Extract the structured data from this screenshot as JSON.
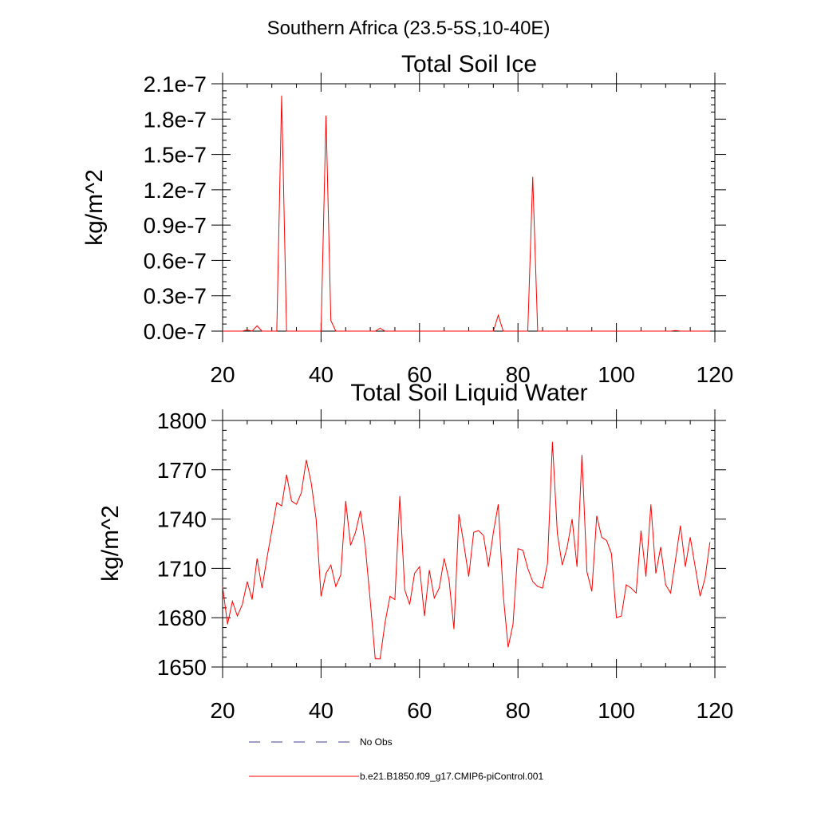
{
  "title": "Southern Africa (23.5-5S,10-40E)",
  "colors": {
    "model_line": "#ff0000",
    "obs_line": "#3c3c8c",
    "axis": "#000000"
  },
  "legend": {
    "placement": "bottom-left",
    "entries": [
      {
        "label": "No Obs",
        "style": "dashed",
        "color": "#3c3c8c"
      },
      {
        "label": "b.e21.B1850.f09_g17.CMIP6-piControl.001",
        "style": "solid",
        "color": "#ff0000"
      }
    ]
  },
  "chart_data": [
    {
      "type": "line",
      "title": "Total Soil Ice",
      "xlabel": "",
      "ylabel": "kg/m^2",
      "xlim": [
        20,
        120
      ],
      "ylim": [
        0,
        2.1e-07
      ],
      "xticks": [
        20,
        40,
        60,
        80,
        100,
        120
      ],
      "xtick_labels": [
        "20",
        "40",
        "60",
        "80",
        "100",
        "120"
      ],
      "yticks": [
        0,
        3e-08,
        6e-08,
        9e-08,
        1.2e-07,
        1.5e-07,
        1.8e-07,
        2.1e-07
      ],
      "ytick_labels": [
        "0.0e-7",
        "0.3e-7",
        "0.6e-7",
        "0.9e-7",
        "1.2e-7",
        "1.5e-7",
        "1.8e-7",
        "2.1e-7"
      ],
      "grid": false,
      "series": [
        {
          "name": "b.e21.B1850.f09_g17.CMIP6-piControl.001",
          "x": [
            20,
            21,
            22,
            23,
            24,
            25,
            26,
            27,
            28,
            29,
            30,
            31,
            32,
            33,
            34,
            35,
            36,
            37,
            38,
            39,
            40,
            41,
            42,
            43,
            44,
            45,
            46,
            47,
            48,
            49,
            50,
            51,
            52,
            53,
            54,
            55,
            56,
            57,
            58,
            59,
            60,
            61,
            62,
            63,
            64,
            65,
            66,
            67,
            68,
            69,
            70,
            71,
            72,
            73,
            74,
            75,
            76,
            77,
            78,
            79,
            80,
            81,
            82,
            83,
            84,
            85,
            86,
            87,
            88,
            89,
            90,
            91,
            92,
            93,
            94,
            95,
            96,
            97,
            98,
            99,
            100,
            101,
            102,
            103,
            104,
            105,
            106,
            107,
            108,
            109,
            110,
            111,
            112,
            113,
            114,
            115,
            116,
            117,
            118,
            119
          ],
          "y": [
            0,
            0,
            0,
            0,
            0,
            1e-09,
            0,
            4.5e-09,
            0,
            0,
            0,
            0,
            2e-07,
            0,
            0,
            0,
            0,
            0,
            0,
            0,
            0,
            1.83e-07,
            9e-09,
            0,
            0,
            0,
            0,
            0,
            0,
            0,
            0,
            0,
            2.5e-09,
            0,
            0,
            0,
            0,
            0,
            0,
            0,
            0,
            0,
            0,
            0,
            0,
            0,
            0,
            0,
            0,
            0,
            0,
            0,
            0,
            0,
            0,
            0,
            1.35e-08,
            0,
            0,
            0,
            0,
            0,
            0,
            1.31e-07,
            0,
            0,
            0,
            0,
            0,
            0,
            0,
            0,
            0,
            0,
            0,
            0,
            0,
            0,
            0,
            0,
            0,
            0,
            0,
            0,
            0,
            0,
            0,
            0,
            0,
            0,
            0,
            0,
            5e-10,
            0,
            0,
            0,
            0,
            0,
            0,
            0
          ]
        }
      ]
    },
    {
      "type": "line",
      "title": "Total Soil Liquid Water",
      "xlabel": "",
      "ylabel": "kg/m^2",
      "xlim": [
        20,
        120
      ],
      "ylim": [
        1650,
        1800
      ],
      "xticks": [
        20,
        40,
        60,
        80,
        100,
        120
      ],
      "xtick_labels": [
        "20",
        "40",
        "60",
        "80",
        "100",
        "120"
      ],
      "yticks": [
        1650,
        1680,
        1710,
        1740,
        1770,
        1800
      ],
      "ytick_labels": [
        "1650",
        "1680",
        "1710",
        "1740",
        "1770",
        "1800"
      ],
      "grid": false,
      "series": [
        {
          "name": "b.e21.B1850.f09_g17.CMIP6-piControl.001",
          "x": [
            20,
            21,
            22,
            23,
            24,
            25,
            26,
            27,
            28,
            29,
            30,
            31,
            32,
            33,
            34,
            35,
            36,
            37,
            38,
            39,
            40,
            41,
            42,
            43,
            44,
            45,
            46,
            47,
            48,
            49,
            50,
            51,
            52,
            53,
            54,
            55,
            56,
            57,
            58,
            59,
            60,
            61,
            62,
            63,
            64,
            65,
            66,
            67,
            68,
            69,
            70,
            71,
            72,
            73,
            74,
            75,
            76,
            77,
            78,
            79,
            80,
            81,
            82,
            83,
            84,
            85,
            86,
            87,
            88,
            89,
            90,
            91,
            92,
            93,
            94,
            95,
            96,
            97,
            98,
            99,
            100,
            101,
            102,
            103,
            104,
            105,
            106,
            107,
            108,
            109,
            110,
            111,
            112,
            113,
            114,
            115,
            116,
            117,
            118,
            119
          ],
          "y": [
            1699,
            1676,
            1690,
            1681,
            1688,
            1702,
            1691,
            1716,
            1698,
            1716,
            1733,
            1750,
            1748,
            1767,
            1751,
            1749,
            1756,
            1776,
            1762,
            1740,
            1693,
            1707,
            1712,
            1699,
            1706,
            1751,
            1724,
            1732,
            1745,
            1723,
            1690,
            1655,
            1655,
            1677,
            1693,
            1691,
            1754,
            1697,
            1688,
            1707,
            1711,
            1681,
            1709,
            1692,
            1698,
            1716,
            1703,
            1673,
            1743,
            1725,
            1705,
            1732,
            1733,
            1730,
            1711,
            1732,
            1749,
            1694,
            1662,
            1676,
            1722,
            1721,
            1710,
            1702,
            1699,
            1698,
            1713,
            1787,
            1731,
            1712,
            1723,
            1740,
            1711,
            1779,
            1708,
            1696,
            1742,
            1729,
            1727,
            1719,
            1680,
            1681,
            1700,
            1698,
            1695,
            1733,
            1705,
            1749,
            1707,
            1723,
            1700,
            1695,
            1715,
            1736,
            1711,
            1729,
            1711,
            1693,
            1704,
            1726
          ]
        }
      ]
    }
  ]
}
